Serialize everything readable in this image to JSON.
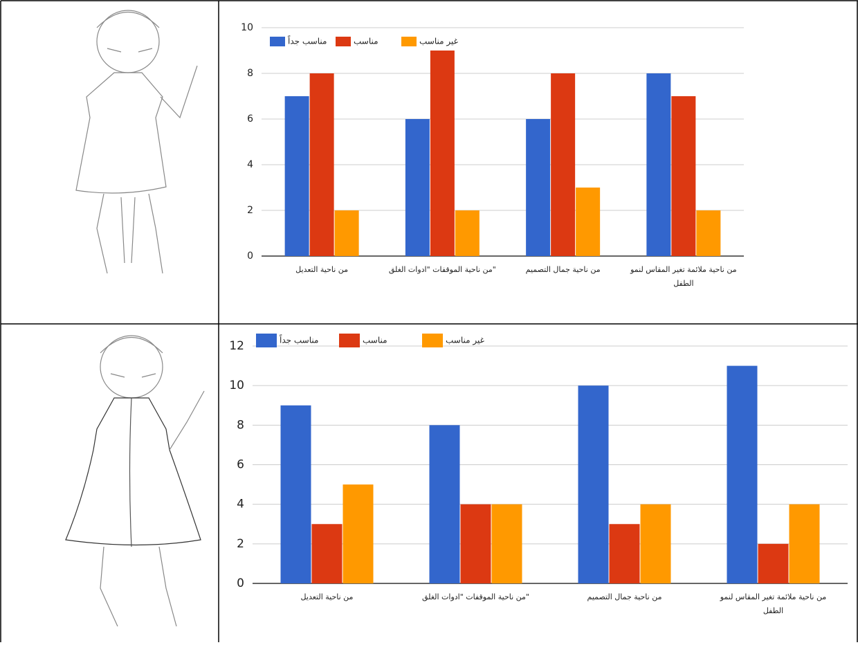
{
  "chart_data": [
    {
      "type": "bar",
      "categories": [
        "من ناحية التعديل",
        "\"من ناحية الموقفات \"ادوات الغلق",
        "من ناحية جمال التصميم",
        "من ناحية ملائمة تغير المقاس لنمو الطفل"
      ],
      "series": [
        {
          "name": "مناسب جداً",
          "color": "#3366cc",
          "values": [
            7,
            6,
            6,
            8
          ]
        },
        {
          "name": "مناسب",
          "color": "#dc3912",
          "values": [
            8,
            9,
            8,
            7
          ]
        },
        {
          "name": "غير مناسب",
          "color": "#ff9900",
          "values": [
            2,
            2,
            3,
            2
          ]
        }
      ],
      "ylim": [
        0,
        10
      ],
      "yticks": [
        0,
        2,
        4,
        6,
        8,
        10
      ],
      "grid": true,
      "legend": "top-left"
    },
    {
      "type": "bar",
      "categories": [
        "من ناحية التعديل",
        "\"من ناحية الموقفات \"ادوات الغلق",
        "من ناحية جمال التصميم",
        "من ناحية ملائمة تغير المقاس لنمو الطفل"
      ],
      "series": [
        {
          "name": "مناسب جداً",
          "color": "#3366cc",
          "values": [
            9,
            8,
            10,
            11
          ]
        },
        {
          "name": "مناسب",
          "color": "#dc3912",
          "values": [
            3,
            4,
            3,
            2
          ]
        },
        {
          "name": "غير مناسب",
          "color": "#ff9900",
          "values": [
            5,
            4,
            4,
            4
          ]
        }
      ],
      "ylim": [
        0,
        12
      ],
      "yticks": [
        0,
        2,
        4,
        6,
        8,
        10,
        12
      ],
      "grid": true,
      "legend": "top-left"
    }
  ]
}
